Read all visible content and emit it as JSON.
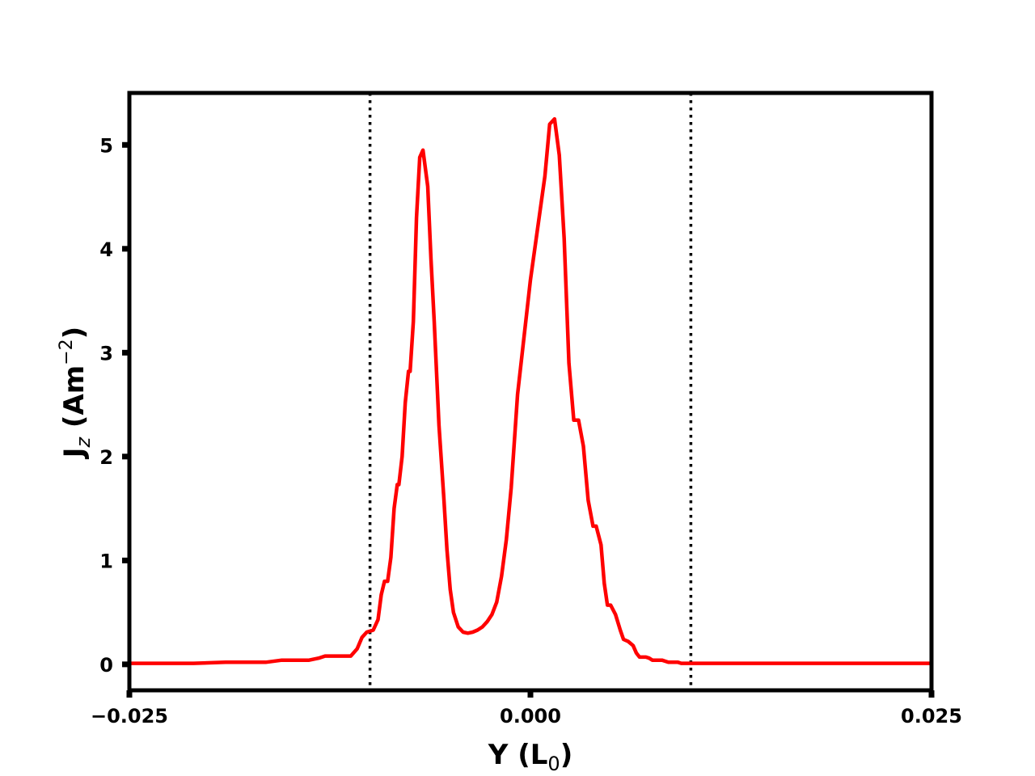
{
  "chart_data": {
    "type": "line",
    "title": "",
    "xlabel": {
      "main": "Y (L",
      "sub": "0",
      "tail": ")"
    },
    "ylabel": {
      "main": "J",
      "sub": "z",
      "mid": " (Am",
      "sup": "−2",
      "tail": ")"
    },
    "xlim": [
      -0.025,
      0.025
    ],
    "ylim": [
      -0.25,
      5.5
    ],
    "xticks": [
      -0.025,
      0.0,
      0.025
    ],
    "xtick_labels": [
      "−0.025",
      "0.000",
      "0.025"
    ],
    "yticks": [
      0,
      1,
      2,
      3,
      4,
      5
    ],
    "ytick_labels": [
      "0",
      "1",
      "2",
      "3",
      "4",
      "5"
    ],
    "grid": false,
    "vlines": [
      {
        "x": -0.01,
        "style": "dotted",
        "color": "#000000"
      },
      {
        "x": 0.01,
        "style": "dotted",
        "color": "#000000"
      }
    ],
    "series": [
      {
        "color": "#ff0000",
        "x": [
          -0.025,
          -0.021,
          -0.019,
          -0.018,
          -0.0165,
          -0.0155,
          -0.015,
          -0.0138,
          -0.0132,
          -0.0128,
          -0.0112,
          -0.0108,
          -0.0105,
          -0.0102,
          -0.0098,
          -0.0095,
          -0.0093,
          -0.0091,
          -0.0089,
          -0.0087,
          -0.0085,
          -0.0083,
          -0.0082,
          -0.008,
          -0.0078,
          -0.0076,
          -0.0075,
          -0.0073,
          -0.0071,
          -0.0069,
          -0.0067,
          -0.0064,
          -0.0062,
          -0.006,
          -0.0057,
          -0.0054,
          -0.0052,
          -0.005,
          -0.0048,
          -0.0045,
          -0.0042,
          -0.0039,
          -0.0036,
          -0.0033,
          -0.003,
          -0.0027,
          -0.0024,
          -0.0021,
          -0.0018,
          -0.0015,
          -0.0012,
          -0.0008,
          0.0,
          0.0009,
          0.0012,
          0.0015,
          0.0018,
          0.0021,
          0.0024,
          0.0027,
          0.003,
          0.0033,
          0.0036,
          0.0039,
          0.0041,
          0.0044,
          0.0046,
          0.0048,
          0.005,
          0.0053,
          0.0056,
          0.0058,
          0.0061,
          0.0064,
          0.0066,
          0.0068,
          0.007,
          0.0072,
          0.0074,
          0.0076,
          0.0078,
          0.008,
          0.0082,
          0.0084,
          0.0086,
          0.0088,
          0.009,
          0.0092,
          0.0094,
          0.0096,
          0.0098,
          0.01,
          0.0102,
          0.0104,
          0.0106,
          0.011,
          0.0128,
          0.0135,
          0.0155,
          0.0162,
          0.018,
          0.02,
          0.025
        ],
        "y": [
          0.01,
          0.01,
          0.02,
          0.02,
          0.02,
          0.04,
          0.04,
          0.04,
          0.06,
          0.08,
          0.08,
          0.15,
          0.26,
          0.31,
          0.33,
          0.43,
          0.67,
          0.8,
          0.8,
          1.03,
          1.5,
          1.73,
          1.73,
          2.0,
          2.52,
          2.82,
          2.82,
          3.3,
          4.3,
          4.88,
          4.95,
          4.6,
          3.9,
          3.3,
          2.3,
          1.6,
          1.1,
          0.72,
          0.5,
          0.36,
          0.31,
          0.3,
          0.31,
          0.33,
          0.36,
          0.41,
          0.48,
          0.6,
          0.85,
          1.2,
          1.7,
          2.6,
          3.7,
          4.7,
          5.2,
          5.25,
          4.9,
          4.1,
          2.9,
          2.35,
          2.35,
          2.1,
          1.58,
          1.33,
          1.33,
          1.15,
          0.78,
          0.57,
          0.57,
          0.48,
          0.33,
          0.24,
          0.22,
          0.18,
          0.11,
          0.07,
          0.07,
          0.07,
          0.06,
          0.04,
          0.04,
          0.04,
          0.04,
          0.03,
          0.02,
          0.02,
          0.02,
          0.02,
          0.01,
          0.01,
          0.01,
          0.01,
          0.01,
          0.01,
          0.01,
          0.01,
          0.01,
          0.01,
          0.01,
          0.01,
          0.01,
          0.01,
          0.01
        ]
      }
    ]
  }
}
